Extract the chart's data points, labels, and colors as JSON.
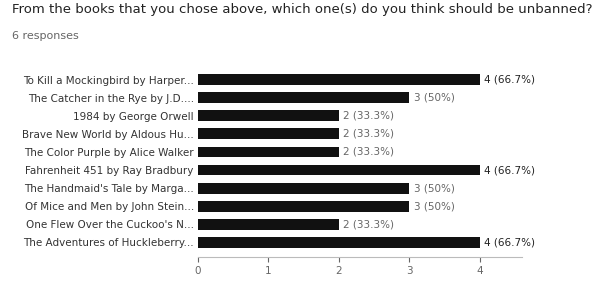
{
  "title": "From the books that you chose above, which one(s) do you think should be unbanned?",
  "subtitle": "6 responses",
  "categories": [
    "To Kill a Mockingbird by Harper...",
    "The Catcher in the Rye by J.D....",
    "1984 by George Orwell",
    "Brave New World by Aldous Hu...",
    "The Color Purple by Alice Walker",
    "Fahrenheit 451 by Ray Bradbury",
    "The Handmaid's Tale by Marga...",
    "Of Mice and Men by John Stein...",
    "One Flew Over the Cuckoo's N...",
    "The Adventures of Huckleberry..."
  ],
  "values": [
    4,
    3,
    2,
    2,
    2,
    4,
    3,
    3,
    2,
    4
  ],
  "labels": [
    "4 (66.7%)",
    "3 (50%)",
    "2 (33.3%)",
    "2 (33.3%)",
    "2 (33.3%)",
    "4 (66.7%)",
    "3 (50%)",
    "3 (50%)",
    "2 (33.3%)",
    "4 (66.7%)"
  ],
  "label_outside": [
    true,
    false,
    false,
    false,
    false,
    true,
    false,
    false,
    false,
    true
  ],
  "bar_color": "#111111",
  "label_color_outside": "#222222",
  "label_color_inside": "#666666",
  "background_color": "#ffffff",
  "xlim": [
    0,
    4.6
  ],
  "xticks": [
    0,
    1,
    2,
    3,
    4
  ],
  "title_fontsize": 9.5,
  "subtitle_fontsize": 8.0,
  "tick_fontsize": 7.5,
  "label_fontsize": 7.5
}
